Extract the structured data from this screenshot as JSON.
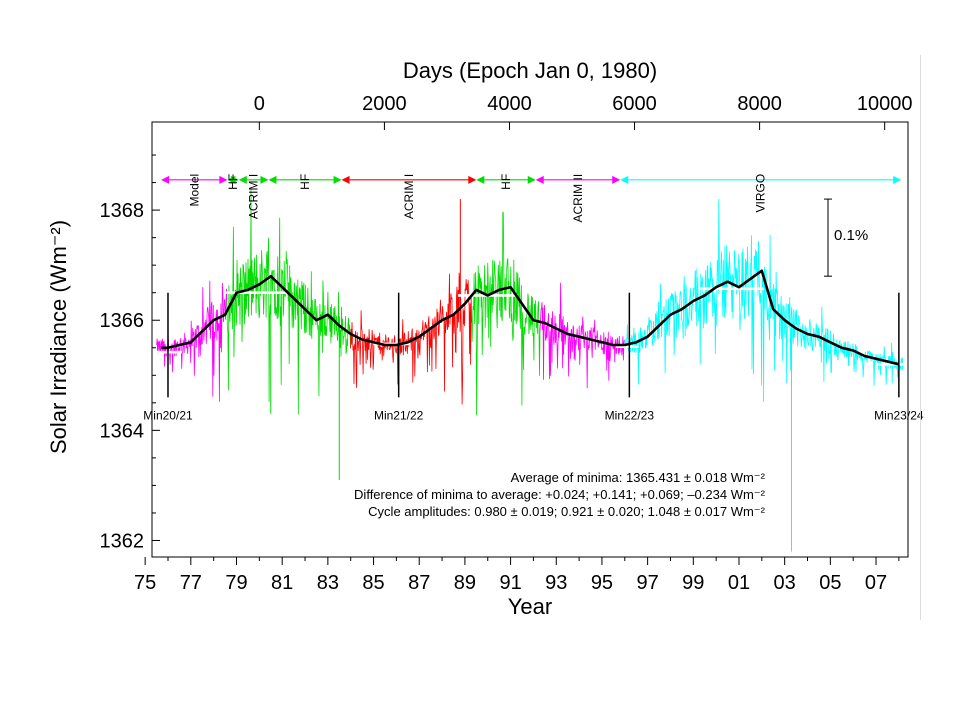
{
  "chart_data": {
    "type": "line",
    "title": "",
    "xlabel": "Year",
    "x2label": "Days (Epoch Jan 0, 1980)",
    "ylabel": "Solar Irradiance (Wm⁻²)",
    "xlim": [
      1975.3,
      2008.4
    ],
    "ylim": [
      1361.7,
      1369.6
    ],
    "x_ticks": [
      1975,
      1977,
      1979,
      1981,
      1983,
      1985,
      1987,
      1989,
      1991,
      1993,
      1995,
      1997,
      1999,
      2001,
      2003,
      2005,
      2007
    ],
    "x_tick_labels": [
      "75",
      "77",
      "79",
      "81",
      "83",
      "85",
      "87",
      "89",
      "91",
      "93",
      "95",
      "97",
      "99",
      "01",
      "03",
      "05",
      "07"
    ],
    "y_ticks": [
      1362,
      1364,
      1366,
      1368
    ],
    "y_tick_labels": [
      "1362",
      "1364",
      "1366",
      "1368"
    ],
    "x2_ticks": [
      0,
      2000,
      4000,
      6000,
      8000,
      10000
    ],
    "x2_tick_labels": [
      "0",
      "2000",
      "4000",
      "6000",
      "8000",
      "10000"
    ],
    "scale_bar_label": "0.1%",
    "scale_bar": {
      "y_from": 1366.8,
      "y_to": 1368.2
    },
    "instruments": [
      {
        "name": "Model",
        "from": 1975.7,
        "to": 1978.6,
        "color": "#ff00ff"
      },
      {
        "name": "HF",
        "from": 1978.6,
        "to": 1979.1,
        "color": "#00dd00"
      },
      {
        "name": "ACRIM I",
        "from": 1979.1,
        "to": 1980.4,
        "color": "#00dd00"
      },
      {
        "name": "HF",
        "from": 1980.4,
        "to": 1983.6,
        "color": "#00dd00"
      },
      {
        "name": "ACRIM I",
        "from": 1983.6,
        "to": 1989.5,
        "color": "#ff0000"
      },
      {
        "name": "HF",
        "from": 1989.5,
        "to": 1992.1,
        "color": "#00dd00"
      },
      {
        "name": "ACRIM II",
        "from": 1992.1,
        "to": 1995.8,
        "color": "#ff00ff"
      },
      {
        "name": "VIRGO",
        "from": 1995.8,
        "to": 2008.1,
        "color": "#00ffff"
      }
    ],
    "minima": [
      {
        "label": "Min20/21",
        "x": 1976.0
      },
      {
        "label": "Min21/22",
        "x": 1986.1
      },
      {
        "label": "Min22/23",
        "x": 1996.2
      },
      {
        "label": "Min23/24",
        "x": 2008.0
      }
    ],
    "level_bars": [
      {
        "from": 1975.4,
        "to": 1976.6,
        "y": 1365.42
      },
      {
        "from": 1978.5,
        "to": 1981.3,
        "y": 1366.5
      },
      {
        "from": 1985.0,
        "to": 1986.6,
        "y": 1365.57
      },
      {
        "from": 1988.7,
        "to": 1991.3,
        "y": 1366.45
      },
      {
        "from": 1995.6,
        "to": 1996.6,
        "y": 1365.52
      },
      {
        "from": 1999.3,
        "to": 2002.1,
        "y": 1366.57
      },
      {
        "from": 2007.1,
        "to": 2008.3,
        "y": 1365.2
      }
    ],
    "series": [
      {
        "name": "",
        "color": "#000000",
        "x": [
          1975.7,
          1976.0,
          1976.5,
          1977.0,
          1977.5,
          1978.0,
          1978.5,
          1979.0,
          1979.5,
          1980.0,
          1980.5,
          1981.0,
          1981.5,
          1982.0,
          1982.5,
          1983.0,
          1983.5,
          1984.0,
          1984.5,
          1985.0,
          1985.5,
          1986.0,
          1986.5,
          1987.0,
          1987.5,
          1988.0,
          1988.5,
          1989.0,
          1989.5,
          1990.0,
          1990.5,
          1991.0,
          1991.5,
          1992.0,
          1992.5,
          1993.0,
          1993.5,
          1994.0,
          1994.5,
          1995.0,
          1995.5,
          1996.0,
          1996.5,
          1997.0,
          1997.5,
          1998.0,
          1998.5,
          1999.0,
          1999.5,
          2000.0,
          2000.5,
          2001.0,
          2001.5,
          2002.0,
          2002.5,
          2003.0,
          2003.5,
          2004.0,
          2004.5,
          2005.0,
          2005.5,
          2006.0,
          2006.5,
          2007.0,
          2007.5,
          2008.0
        ],
        "y": [
          1365.5,
          1365.5,
          1365.55,
          1365.6,
          1365.8,
          1366.0,
          1366.1,
          1366.5,
          1366.55,
          1366.65,
          1366.8,
          1366.6,
          1366.4,
          1366.2,
          1366.0,
          1366.1,
          1365.9,
          1365.75,
          1365.65,
          1365.6,
          1365.55,
          1365.55,
          1365.6,
          1365.7,
          1365.85,
          1366.0,
          1366.1,
          1366.3,
          1366.55,
          1366.45,
          1366.55,
          1366.6,
          1366.3,
          1366.0,
          1365.95,
          1365.85,
          1365.75,
          1365.7,
          1365.65,
          1365.6,
          1365.55,
          1365.55,
          1365.6,
          1365.7,
          1365.9,
          1366.1,
          1366.2,
          1366.35,
          1366.45,
          1366.6,
          1366.7,
          1366.6,
          1366.75,
          1366.9,
          1366.2,
          1366.0,
          1365.85,
          1365.75,
          1365.7,
          1365.6,
          1365.5,
          1365.45,
          1365.35,
          1365.3,
          1365.25,
          1365.2
        ]
      }
    ]
  },
  "annotations": {
    "line1": "Average of minima:  1365.431 ± 0.018 Wm⁻²",
    "line2": "Difference of minima to average: +0.024; +0.141; +0.069; –0.234 Wm⁻²",
    "line3": "Cycle amplitudes:  0.980 ± 0.019; 0.921 ± 0.020; 1.048 ± 0.017 Wm⁻²"
  }
}
